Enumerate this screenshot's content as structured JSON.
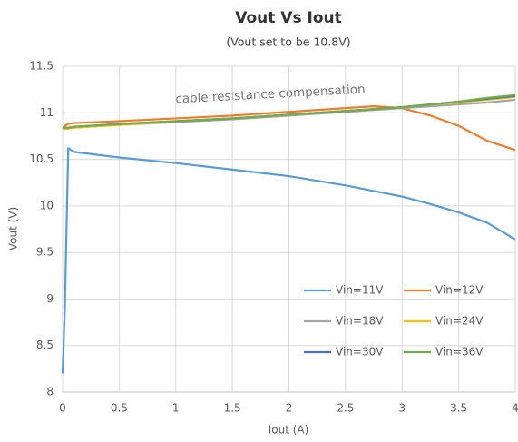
{
  "chart_data": {
    "type": "line",
    "title": "Vout Vs Iout",
    "subtitle": "(Vout set to be 10.8V)",
    "x_label": "Iout (A)",
    "y_label": "Vout (V)",
    "annotation": "cable resistance compensation",
    "x": [
      0,
      0.02,
      0.05,
      0.1,
      0.5,
      1,
      1.5,
      2,
      2.5,
      2.75,
      3,
      3.25,
      3.5,
      3.75,
      4
    ],
    "series": [
      {
        "name": "Vin=11V",
        "color": "#5b9bd5",
        "values": [
          8.2,
          8.9,
          10.62,
          10.58,
          10.52,
          10.46,
          10.39,
          10.32,
          10.22,
          10.16,
          10.1,
          10.02,
          9.93,
          9.82,
          9.64
        ]
      },
      {
        "name": "Vin=12V",
        "color": "#ed7d31",
        "values": [
          10.83,
          10.86,
          10.88,
          10.89,
          10.91,
          10.94,
          10.97,
          11.01,
          11.05,
          11.07,
          11.05,
          10.97,
          10.86,
          10.7,
          10.6
        ]
      },
      {
        "name": "Vin=18V",
        "color": "#a5a5a5",
        "values": [
          10.83,
          10.83,
          10.83,
          10.84,
          10.87,
          10.9,
          10.93,
          10.97,
          11.01,
          11.03,
          11.05,
          11.07,
          11.09,
          11.11,
          11.14
        ]
      },
      {
        "name": "Vin=24V",
        "color": "#ffc000",
        "values": [
          10.83,
          10.83,
          10.83,
          10.84,
          10.87,
          10.91,
          10.94,
          10.98,
          11.02,
          11.04,
          11.06,
          11.09,
          11.11,
          11.14,
          11.17
        ]
      },
      {
        "name": "Vin=30V",
        "color": "#4472c4",
        "values": [
          10.84,
          10.84,
          10.84,
          10.85,
          10.88,
          10.91,
          10.94,
          10.98,
          11.02,
          11.04,
          11.06,
          11.09,
          11.12,
          11.15,
          11.18
        ]
      },
      {
        "name": "Vin=36V",
        "color": "#70ad47",
        "values": [
          10.84,
          10.84,
          10.84,
          10.85,
          10.88,
          10.91,
          10.94,
          10.98,
          11.02,
          11.04,
          11.06,
          11.09,
          11.12,
          11.16,
          11.19
        ]
      }
    ],
    "xlim": [
      0,
      4
    ],
    "xticks": [
      0,
      0.5,
      1,
      1.5,
      2,
      2.5,
      3,
      3.5,
      4
    ],
    "ylim": [
      8,
      11.5
    ],
    "yticks": [
      8,
      8.5,
      9,
      9.5,
      10,
      10.5,
      11,
      11.5
    ],
    "grid": true,
    "legend": "lower right"
  }
}
